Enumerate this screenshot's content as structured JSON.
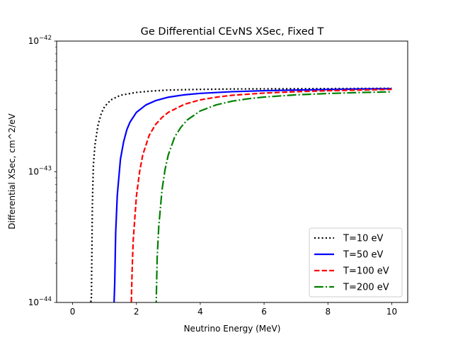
{
  "chart_data": {
    "type": "line",
    "title": "Ge Differential CEvNS XSec, Fixed T",
    "xlabel": "Neutrino Energy (MeV)",
    "ylabel": "Differential XSec, cm^2/eV",
    "xlim": [
      -0.5,
      10.5
    ],
    "ylim": [
      1e-44,
      1e-42
    ],
    "yscale": "log",
    "xticks": [
      0,
      2,
      4,
      6,
      8,
      10
    ],
    "xtick_labels": [
      "0",
      "2",
      "4",
      "6",
      "8",
      "10"
    ],
    "yticks": [
      1e-44,
      1e-43,
      1e-42
    ],
    "ytick_labels": [
      {
        "base": "10",
        "exp": "−44"
      },
      {
        "base": "10",
        "exp": "−43"
      },
      {
        "base": "10",
        "exp": "−42"
      }
    ],
    "legend_position": "lower-right",
    "grid": false,
    "series": [
      {
        "name": "T=10 eV",
        "color": "#000000",
        "dash": "dotted",
        "x": [
          0.57,
          0.59,
          0.62,
          0.65,
          0.7,
          0.8,
          0.9,
          1.0,
          1.2,
          1.5,
          2.0,
          2.5,
          3.0,
          4.0,
          5.0,
          6.0,
          7.0,
          8.0,
          9.0,
          10.0
        ],
        "y": [
          1e-44,
          1.1e-44,
          5.6e-44,
          1.1e-43,
          1.6e-43,
          2.3e-43,
          2.8e-43,
          3.15e-43,
          3.55e-43,
          3.85e-43,
          4.05e-43,
          4.15e-43,
          4.22e-43,
          4.27e-43,
          4.3e-43,
          4.31e-43,
          4.32e-43,
          4.33e-43,
          4.34e-43,
          4.35e-43
        ]
      },
      {
        "name": "T=50 eV",
        "color": "#0000ff",
        "dash": "solid",
        "x": [
          1.3,
          1.32,
          1.35,
          1.4,
          1.5,
          1.6,
          1.7,
          1.8,
          2.0,
          2.3,
          2.6,
          3.0,
          3.5,
          4.0,
          5.0,
          6.0,
          7.0,
          8.0,
          9.0,
          10.0
        ],
        "y": [
          1e-44,
          1.4e-44,
          3.4e-44,
          6.6e-44,
          1.25e-43,
          1.7e-43,
          2.1e-43,
          2.4e-43,
          2.85e-43,
          3.25e-43,
          3.5e-43,
          3.72e-43,
          3.88e-43,
          3.98e-43,
          4.1e-43,
          4.17e-43,
          4.22e-43,
          4.26e-43,
          4.3e-43,
          4.32e-43
        ]
      },
      {
        "name": "T=100 eV",
        "color": "#ff0000",
        "dash": "dashed",
        "x": [
          1.84,
          1.87,
          1.9,
          2.0,
          2.1,
          2.2,
          2.4,
          2.6,
          2.8,
          3.0,
          3.5,
          4.0,
          4.5,
          5.0,
          6.0,
          7.0,
          8.0,
          9.0,
          10.0
        ],
        "y": [
          1e-44,
          1.9e-44,
          3e-44,
          6.5e-44,
          1e-43,
          1.35e-43,
          1.9e-43,
          2.3e-43,
          2.6e-43,
          2.85e-43,
          3.28e-43,
          3.55e-43,
          3.72e-43,
          3.85e-43,
          4e-43,
          4.1e-43,
          4.17e-43,
          4.22e-43,
          4.27e-43
        ]
      },
      {
        "name": "T=200 eV",
        "color": "#008000",
        "dash": "dashdot",
        "x": [
          2.62,
          2.65,
          2.7,
          2.8,
          2.9,
          3.0,
          3.2,
          3.4,
          3.6,
          4.0,
          4.5,
          5.0,
          5.5,
          6.0,
          7.0,
          8.0,
          9.0,
          10.0
        ],
        "y": [
          1e-44,
          2.2e-44,
          3.8e-44,
          7.2e-44,
          1.05e-43,
          1.35e-43,
          1.85e-43,
          2.2e-43,
          2.5e-43,
          2.92e-43,
          3.25e-43,
          3.47e-43,
          3.62e-43,
          3.73e-43,
          3.88e-43,
          3.97e-43,
          4.04e-43,
          4.09e-43
        ]
      }
    ]
  }
}
